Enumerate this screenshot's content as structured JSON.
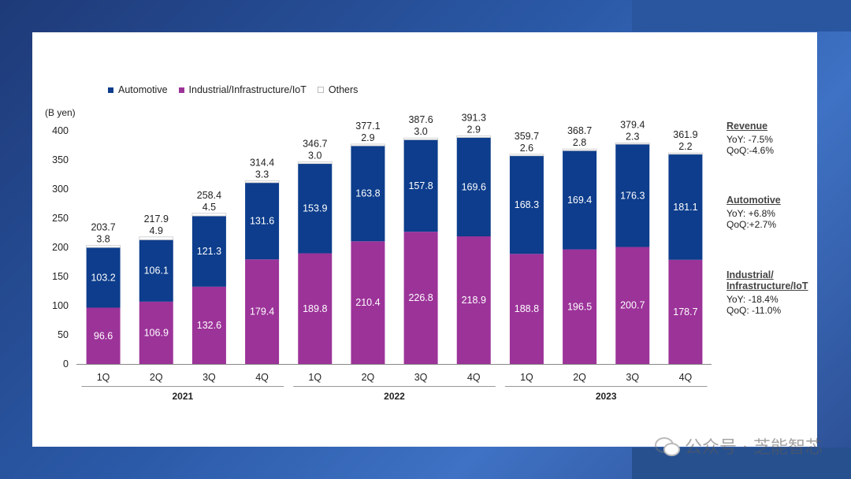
{
  "chart_data": {
    "type": "bar",
    "stacked": true,
    "ylabel": "(B yen)",
    "ylim": [
      0,
      400
    ],
    "yticks": [
      0,
      50,
      100,
      150,
      200,
      250,
      300,
      350,
      400
    ],
    "categories": [
      "1Q",
      "2Q",
      "3Q",
      "4Q",
      "1Q",
      "2Q",
      "3Q",
      "4Q",
      "1Q",
      "2Q",
      "3Q",
      "4Q"
    ],
    "groups": [
      {
        "label": "2021",
        "start": 0,
        "end": 3
      },
      {
        "label": "2022",
        "start": 4,
        "end": 7
      },
      {
        "label": "2023",
        "start": 8,
        "end": 11
      }
    ],
    "series": [
      {
        "name": "Industrial/Infrastructure/IoT",
        "color": "#9c3399",
        "values": [
          96.6,
          106.9,
          132.6,
          179.4,
          189.8,
          210.4,
          226.8,
          218.9,
          188.8,
          196.5,
          200.7,
          178.7
        ]
      },
      {
        "name": "Automotive",
        "color": "#0d3d8c",
        "values": [
          103.2,
          106.1,
          121.3,
          131.6,
          153.9,
          163.8,
          157.8,
          169.6,
          168.3,
          169.4,
          176.3,
          181.1
        ]
      },
      {
        "name": "Others",
        "color": "#ffffff",
        "values": [
          3.8,
          4.9,
          4.5,
          3.3,
          3.0,
          2.9,
          3.0,
          2.9,
          2.6,
          2.8,
          2.3,
          2.2
        ]
      }
    ],
    "totals": [
      203.7,
      217.9,
      258.4,
      314.4,
      346.7,
      377.1,
      387.6,
      391.3,
      359.7,
      368.7,
      379.4,
      361.9
    ],
    "legend": [
      {
        "name": "Automotive",
        "color": "#0d3d8c"
      },
      {
        "name": "Industrial/Infrastructure/IoT",
        "color": "#9c3399"
      },
      {
        "name": "Others",
        "color": "#ffffff"
      }
    ]
  },
  "side_notes": [
    {
      "heading": "Revenue",
      "lines": [
        "YoY: -7.5%",
        "QoQ:-4.6%"
      ]
    },
    {
      "heading": "Automotive",
      "lines": [
        "YoY: +6.8%",
        "QoQ:+2.7%"
      ]
    },
    {
      "heading_lines": [
        "Industrial/",
        "Infrastructure/IoT"
      ],
      "lines": [
        "YoY:  -18.4%",
        "QoQ: -11.0%"
      ]
    }
  ],
  "watermark": "公众号 · 芝能智芯"
}
